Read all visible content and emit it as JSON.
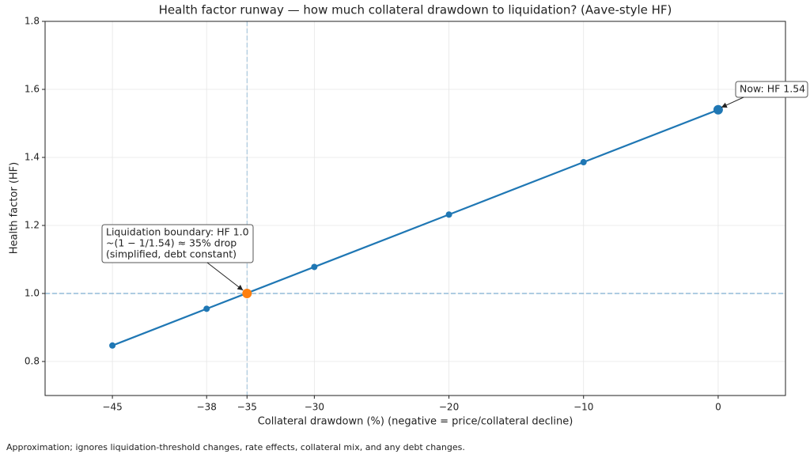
{
  "chart_data": {
    "type": "line",
    "title": "Health factor runway — how much collateral drawdown to liquidation? (Aave-style HF)",
    "x_label": "Collateral drawdown (%)  (negative = price/collateral decline)",
    "y_label": "Health factor (HF)",
    "footnote": "Approximation; ignores liquidation-threshold changes, rate effects, collateral mix, and any debt changes.",
    "xlim": [
      -50,
      5
    ],
    "ylim": [
      0.7,
      1.8
    ],
    "xticks": [
      {
        "value": -45,
        "label": "−45"
      },
      {
        "value": -38,
        "label": "−38"
      },
      {
        "value": -35,
        "label": "−35"
      },
      {
        "value": -30,
        "label": "−30"
      },
      {
        "value": -20,
        "label": "−20"
      },
      {
        "value": -10,
        "label": "−10"
      },
      0
    ],
    "yticks": [
      0.8,
      {
        "value": 1,
        "label": "1.0"
      },
      {
        "value": 1.2,
        "label": "1.2"
      },
      {
        "value": 1.4,
        "label": "1.4"
      },
      {
        "value": 1.6,
        "label": "1.6"
      },
      {
        "value": 1.8,
        "label": "1.8"
      }
    ],
    "grid": true,
    "series": [
      {
        "color": "#1f77b4",
        "x": [
          -45,
          -38,
          -35,
          -30,
          -20,
          -10,
          0
        ],
        "values": [
          0.847,
          0.955,
          1.001,
          1.078,
          1.232,
          1.386,
          1.54
        ]
      }
    ],
    "highlights": [
      {
        "x": -35,
        "value": 1.0,
        "color": "#ff7f0e"
      },
      {
        "x": 0,
        "value": 1.54,
        "color": "#1f77b4"
      }
    ],
    "hline": 1.0,
    "vline": -35,
    "annotations": [
      {
        "lines": [
          "Liquidation boundary: HF 1.0",
          "~(1 − 1/1.54) ≈ 35% drop",
          "(simplified, debt constant)"
        ]
      },
      {
        "lines": [
          "Now: HF 1.54"
        ]
      }
    ]
  }
}
